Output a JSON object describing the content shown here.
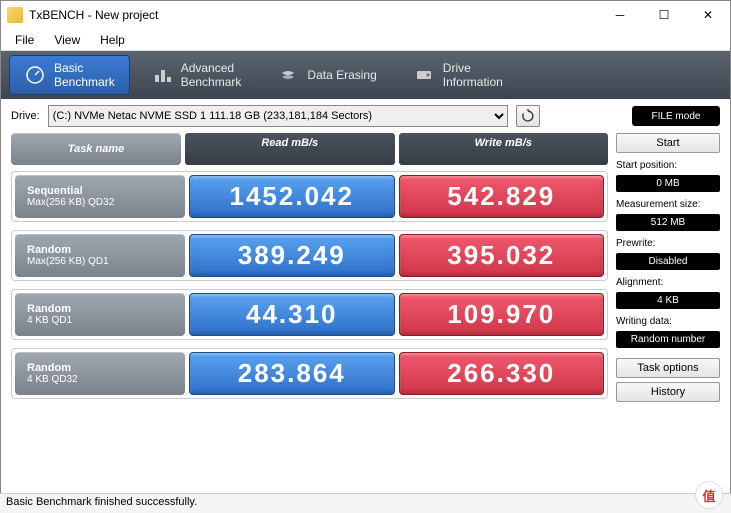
{
  "window": {
    "title": "TxBENCH - New project"
  },
  "menu": {
    "file": "File",
    "view": "View",
    "help": "Help"
  },
  "toolbar": {
    "basic": {
      "l1": "Basic",
      "l2": "Benchmark"
    },
    "advanced": {
      "l1": "Advanced",
      "l2": "Benchmark"
    },
    "erase": {
      "l1": "Data Erasing"
    },
    "info": {
      "l1": "Drive",
      "l2": "Information"
    }
  },
  "drive": {
    "label": "Drive:",
    "selected": "(C:) NVMe Netac NVME SSD 1  111.18 GB (233,181,184 Sectors)",
    "filemode": "FILE mode"
  },
  "headers": {
    "task": "Task name",
    "read": "Read mB/s",
    "write": "Write mB/s"
  },
  "rows": [
    {
      "t1": "Sequential",
      "t2": "Max(256 KB) QD32",
      "read": "1452.042",
      "write": "542.829"
    },
    {
      "t1": "Random",
      "t2": "Max(256 KB) QD1",
      "read": "389.249",
      "write": "395.032"
    },
    {
      "t1": "Random",
      "t2": "4 KB QD1",
      "read": "44.310",
      "write": "109.970"
    },
    {
      "t1": "Random",
      "t2": "4 KB QD32",
      "read": "283.864",
      "write": "266.330"
    }
  ],
  "side": {
    "start": "Start",
    "startpos_label": "Start position:",
    "startpos": "0 MB",
    "measure_label": "Measurement size:",
    "measure": "512 MB",
    "prewrite_label": "Prewrite:",
    "prewrite": "Disabled",
    "align_label": "Alignment:",
    "align": "4 KB",
    "writedata_label": "Writing data:",
    "writedata": "Random number",
    "taskopt": "Task options",
    "history": "History"
  },
  "status": "Basic Benchmark finished successfully.",
  "watermark": "值 · 什么值得买",
  "colors": {
    "read_bg": "#3a7bd5",
    "write_bg": "#e04556",
    "toolbar_bg": "#4a535e",
    "task_bg": "#8a929c"
  }
}
